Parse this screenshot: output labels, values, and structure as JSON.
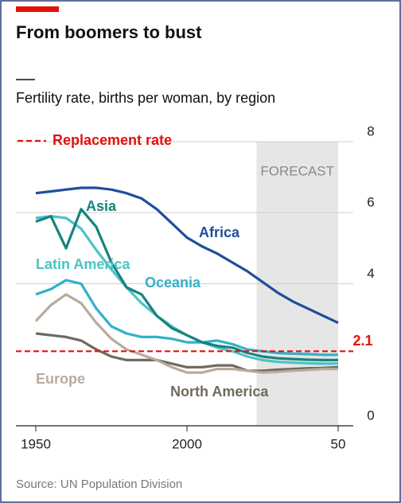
{
  "chart_data": {
    "type": "line",
    "title": "From boomers to bust",
    "subtitle": "Fertility rate, births per woman, by region",
    "source": "Source: UN Population Division",
    "x": [
      1950,
      1955,
      1960,
      1965,
      1970,
      1975,
      1980,
      1985,
      1990,
      1995,
      2000,
      2005,
      2010,
      2015,
      2020,
      2025,
      2030,
      2035,
      2040,
      2045,
      2050
    ],
    "series": [
      {
        "name": "Africa",
        "color": "#1f4e9c",
        "values": [
          6.55,
          6.6,
          6.65,
          6.7,
          6.7,
          6.65,
          6.55,
          6.4,
          6.1,
          5.7,
          5.3,
          5.05,
          4.85,
          4.6,
          4.35,
          4.05,
          3.75,
          3.5,
          3.3,
          3.1,
          2.9
        ]
      },
      {
        "name": "Asia",
        "color": "#17837c",
        "values": [
          5.75,
          5.9,
          5.0,
          6.1,
          5.6,
          4.6,
          3.9,
          3.7,
          3.1,
          2.75,
          2.55,
          2.35,
          2.25,
          2.2,
          2.05,
          1.95,
          1.9,
          1.88,
          1.86,
          1.85,
          1.85
        ]
      },
      {
        "name": "Latin America",
        "color": "#4cc3c6",
        "values": [
          5.85,
          5.9,
          5.85,
          5.55,
          4.95,
          4.4,
          3.9,
          3.45,
          3.1,
          2.8,
          2.55,
          2.35,
          2.2,
          2.1,
          1.95,
          1.85,
          1.8,
          1.78,
          1.76,
          1.75,
          1.75
        ]
      },
      {
        "name": "Oceania",
        "color": "#31b1c9",
        "values": [
          3.7,
          3.85,
          4.1,
          4.0,
          3.3,
          2.8,
          2.6,
          2.5,
          2.5,
          2.45,
          2.35,
          2.35,
          2.4,
          2.3,
          2.15,
          2.1,
          2.05,
          2.03,
          2.02,
          2.0,
          2.0
        ]
      },
      {
        "name": "Europe",
        "color": "#b7ab9b",
        "values": [
          2.95,
          3.4,
          3.7,
          3.45,
          2.9,
          2.45,
          2.15,
          2.0,
          1.85,
          1.65,
          1.5,
          1.5,
          1.6,
          1.6,
          1.55,
          1.5,
          1.52,
          1.55,
          1.57,
          1.6,
          1.6
        ]
      },
      {
        "name": "North America",
        "color": "#706a5e",
        "values": [
          2.6,
          2.55,
          2.5,
          2.4,
          2.15,
          1.95,
          1.85,
          1.85,
          1.85,
          1.75,
          1.65,
          1.65,
          1.7,
          1.7,
          1.55,
          1.55,
          1.58,
          1.6,
          1.62,
          1.63,
          1.65
        ]
      }
    ],
    "reference_line": {
      "name": "Replacement rate",
      "value": 2.1,
      "color": "#e3120b"
    },
    "forecast": {
      "label": "FORECAST",
      "start": 2023
    },
    "xlim": [
      1950,
      2050
    ],
    "ylim": [
      0,
      8
    ],
    "xticks": [
      1950,
      2000,
      {
        "value": 2050,
        "label": "50"
      }
    ],
    "yticks": [
      0,
      4,
      6,
      8
    ],
    "grid": true
  }
}
